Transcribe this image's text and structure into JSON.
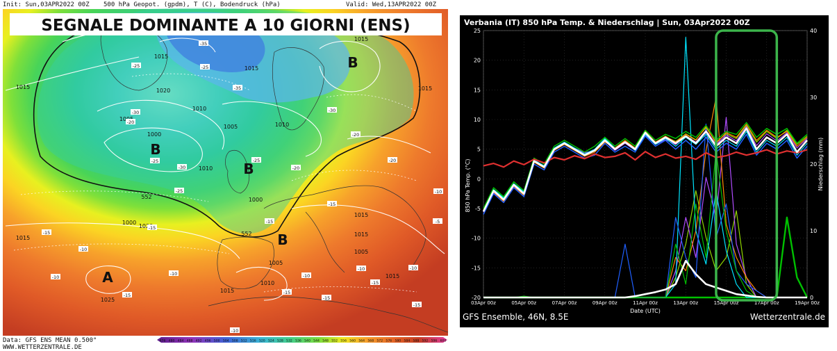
{
  "map": {
    "header_init": "Init: Sun,03APR2022 00Z",
    "header_field": "500 hPa Geopot. (gpdm), T (C), Bodendruck (hPa)",
    "header_valid": "Valid: Wed,13APR2022 00Z",
    "banner_title": "SEGNALE DOMINANTE A 10 GIORNI (ENS)",
    "footer_data": "Data: GFS ENS MEAN 0.500°",
    "footer_site": "WWW.WETTERZENTRALE.DE",
    "scale_labels": [
      "476",
      "480",
      "484",
      "488",
      "492",
      "496",
      "500",
      "504",
      "508",
      "512",
      "516",
      "520",
      "524",
      "528",
      "532",
      "536",
      "540",
      "544",
      "548",
      "552",
      "556",
      "560",
      "564",
      "568",
      "572",
      "576",
      "580",
      "584",
      "588",
      "592",
      "596",
      "600"
    ],
    "pressure_centres": [
      {
        "letter": "B",
        "label": "pressure-low-b"
      },
      {
        "letter": "B",
        "label": "pressure-low-b"
      },
      {
        "letter": "B",
        "label": "pressure-low-b"
      },
      {
        "letter": "B",
        "label": "pressure-low-b"
      },
      {
        "letter": "A",
        "label": "pressure-high-a"
      }
    ],
    "isobar_labels": [
      "1015",
      "1015",
      "1020",
      "1015",
      "1005",
      "1010",
      "1010",
      "1015",
      "1015",
      "1005",
      "1010",
      "1000",
      "1000",
      "1000",
      "1015",
      "1020",
      "1025",
      "1005",
      "1015",
      "1010",
      "1015",
      "1015",
      "1005",
      "1015",
      "552",
      "552"
    ],
    "temp_labels": [
      "-35",
      "-30",
      "-30",
      "-35",
      "-25",
      "-30",
      "-25",
      "-25",
      "-20",
      "-20",
      "-25",
      "-20",
      "-20",
      "-25",
      "-15",
      "-15",
      "-15",
      "-10",
      "-10",
      "-15",
      "-10",
      "-15",
      "-15",
      "-15",
      "-10",
      "-15",
      "-10",
      "-10",
      "-10",
      "-10",
      "-15",
      "-5"
    ]
  },
  "chart_data": {
    "type": "line",
    "title": "Verbania  (IT)  850 hPa Temp. & Niederschlag | Sun, 03Apr2022 00Z",
    "ylabel_left": "850 hPa Temp. (°C)",
    "ylabel_right": "Niederschlag (mm)",
    "xlabel": "Date (UTC)",
    "footer_left": "GFS Ensemble, 46N, 8.5E",
    "footer_right": "Wetterzentrale.de",
    "x_tick_labels": [
      "03Apr 00z",
      "05Apr 00z",
      "07Apr 00z",
      "09Apr 00z",
      "11Apr 00z",
      "13Apr 00z",
      "15Apr 00z",
      "17Apr 00z",
      "19Apr 00z"
    ],
    "ylim_left": [
      -20,
      25
    ],
    "ylim_right": [
      0,
      40
    ],
    "y_ticks_left": [
      "25",
      "20",
      "15",
      "10",
      "5",
      "0",
      "-5",
      "-10",
      "-15",
      "-20"
    ],
    "y_ticks_right": [
      "40",
      "30",
      "20",
      "10",
      "0"
    ],
    "x_days": [
      0,
      0.5,
      1,
      1.5,
      2,
      2.5,
      3,
      3.5,
      4,
      4.5,
      5,
      5.5,
      6,
      6.5,
      7,
      7.5,
      8,
      8.5,
      9,
      9.5,
      10,
      10.5,
      11,
      11.5,
      12,
      12.5,
      13,
      13.5,
      14,
      14.5,
      15,
      15.5,
      16
    ],
    "series": [
      {
        "values": [
          -5.5,
          -2,
          -3.5,
          -1,
          -2.5,
          3,
          2,
          5,
          6,
          5,
          4,
          4.8,
          6.5,
          5,
          6.2,
          5,
          7.8,
          6,
          7,
          6,
          7.2,
          6,
          8,
          5.5,
          7,
          6,
          8.5,
          5,
          7,
          6,
          7.5,
          4.5,
          6.5
        ],
        "color": "#ffffff",
        "width": 2.6
      },
      {
        "values": [
          2.2,
          2.6,
          2,
          3,
          2.4,
          3.3,
          2.7,
          3.6,
          3.2,
          3.9,
          3.4,
          4.2,
          3.6,
          3.8,
          4.4,
          3.2,
          4.6,
          3.6,
          4.2,
          3.5,
          3.8,
          3.3,
          4.4,
          3.6,
          3.9,
          4.5,
          4,
          4.4,
          4.9,
          4.2,
          4.7,
          4.4,
          4.9
        ],
        "color": "#e03030",
        "width": 2.2
      },
      {
        "values": [
          -5,
          -1.5,
          -3,
          -0.5,
          -2,
          3.5,
          2.5,
          5.5,
          6.5,
          5.5,
          4.5,
          5.5,
          7,
          5.5,
          6.8,
          5.5,
          8.2,
          6.5,
          7.5,
          6.8,
          8,
          7,
          9,
          6.5,
          8,
          7.5,
          9.5,
          7,
          8.5,
          7.5,
          8.5,
          6,
          7.5
        ],
        "color": "#00c000",
        "width": 1.5
      },
      {
        "values": [
          -6,
          -2.5,
          -4,
          -1.5,
          -3,
          2.5,
          1.5,
          4.5,
          5.5,
          4.5,
          3.5,
          4,
          6,
          4.5,
          5.5,
          4.5,
          7.2,
          5.5,
          6.5,
          5,
          6.5,
          5,
          7,
          4.5,
          6,
          5,
          7.5,
          4,
          6,
          5,
          6.5,
          3.5,
          5.5
        ],
        "color": "#1f5fff",
        "width": 1.5
      },
      {
        "values": [
          -5.2,
          -2.2,
          -3.8,
          -1.2,
          -2.8,
          2.8,
          1.8,
          4.8,
          5.8,
          4.8,
          3.8,
          4.5,
          6.2,
          5.2,
          6.5,
          5.2,
          8,
          6.2,
          7.2,
          6.2,
          7.5,
          6.5,
          8.8,
          6,
          7.8,
          7,
          9.2,
          6.5,
          8.2,
          7,
          8,
          5.5,
          7
        ],
        "color": "#ff8a00",
        "width": 1.2
      },
      {
        "values": [
          -5.4,
          -1.8,
          -3.2,
          -0.8,
          -2.2,
          3.2,
          2.2,
          5.2,
          6.2,
          5.2,
          4.2,
          5,
          6.8,
          5.2,
          6.2,
          4.8,
          7.5,
          5.8,
          6.8,
          5.5,
          7,
          5.8,
          7.5,
          5,
          6.5,
          5.5,
          8,
          4.5,
          6.5,
          5.5,
          7,
          4,
          6
        ],
        "color": "#00e5ff",
        "width": 1.2
      },
      {
        "values": [
          -5.6,
          -2.4,
          -3.6,
          -1.4,
          -2.6,
          3,
          2.2,
          5,
          6,
          5.2,
          4.4,
          4.8,
          6.4,
          4.8,
          6,
          4.8,
          7.4,
          5.8,
          6.6,
          5.8,
          7.2,
          6.2,
          8.2,
          5.8,
          7.4,
          6.4,
          8.8,
          5.6,
          7.6,
          6.4,
          7.8,
          5.2,
          6.8
        ],
        "color": "#b04cff",
        "width": 1.2
      },
      {
        "values": [
          -5.3,
          -2.1,
          -3.4,
          -1.1,
          -2.4,
          3.1,
          2.1,
          5.1,
          6.1,
          5.1,
          4.1,
          4.9,
          6.6,
          5.1,
          6.3,
          5.1,
          7.9,
          6.1,
          7.1,
          6.3,
          7.6,
          6.6,
          8.6,
          6.2,
          7.6,
          6.8,
          9,
          6.2,
          8,
          6.8,
          8.2,
          5.8,
          7.2
        ],
        "color": "#8fd400",
        "width": 1.2
      }
    ],
    "precip_series": [
      {
        "values": [
          0,
          0,
          0,
          0,
          0,
          0,
          0,
          0,
          0,
          0,
          0,
          0,
          0,
          0,
          0,
          0.2,
          0.5,
          0.8,
          1.2,
          2,
          5.5,
          3.5,
          2,
          1.5,
          1,
          0.5,
          0.3,
          0.1,
          0,
          0,
          0,
          0,
          0
        ],
        "color": "#ffffff",
        "width": 2.6
      },
      {
        "values": [
          0,
          0,
          0,
          0,
          0.2,
          0,
          0,
          0,
          0,
          0,
          0,
          0,
          0,
          0,
          0,
          0,
          0,
          0,
          0,
          8,
          2,
          14,
          6,
          22,
          10,
          4,
          1,
          0,
          0,
          0,
          0,
          0,
          0
        ],
        "color": "#00c000",
        "width": 1.2
      },
      {
        "values": [
          0,
          0,
          0,
          0,
          0,
          0,
          0,
          0,
          0,
          0,
          0,
          0,
          0,
          0,
          8,
          0,
          0,
          0,
          0,
          12,
          6,
          3,
          26,
          9,
          14,
          4,
          2,
          1,
          0,
          0,
          0,
          0,
          0
        ],
        "color": "#1f5fff",
        "width": 1.2
      },
      {
        "values": [
          0,
          0,
          0,
          0,
          0,
          0,
          0,
          0,
          0,
          0,
          0,
          0,
          0,
          0,
          0,
          0,
          0,
          0,
          0,
          2,
          39,
          10,
          5,
          16,
          7,
          2,
          0,
          0,
          0,
          0,
          0,
          0,
          0
        ],
        "color": "#00e5ff",
        "width": 1.2
      },
      {
        "values": [
          0,
          0,
          0,
          0,
          0,
          0,
          0,
          0,
          0,
          0,
          0,
          0,
          0,
          0,
          0,
          0,
          0,
          0,
          0,
          6,
          4,
          10,
          22,
          30,
          11,
          6,
          3,
          1,
          0,
          0,
          0,
          0,
          0
        ],
        "color": "#ff8a00",
        "width": 1.2
      },
      {
        "values": [
          0,
          0,
          0,
          0,
          0,
          0,
          0,
          0,
          0,
          0,
          0,
          0,
          0,
          0,
          0,
          0,
          0,
          0,
          0,
          4,
          12,
          6,
          18,
          12,
          27,
          8,
          3,
          0,
          0,
          0,
          0,
          0,
          0
        ],
        "color": "#b04cff",
        "width": 1.2
      },
      {
        "values": [
          0,
          0,
          0,
          0,
          0,
          0,
          0,
          0,
          0,
          0,
          0,
          0,
          0,
          0,
          0,
          0,
          0,
          0,
          0,
          3,
          8,
          16,
          9,
          4,
          6,
          13,
          2,
          0,
          0,
          0,
          0,
          0,
          0
        ],
        "color": "#8fd400",
        "width": 1.2
      },
      {
        "values": [
          0,
          0,
          0,
          0,
          0,
          0,
          0,
          0,
          0,
          0,
          0,
          0,
          0,
          0,
          0,
          0,
          0,
          0,
          0,
          0,
          0,
          0,
          0,
          0,
          0,
          0,
          0,
          0,
          0,
          0,
          12,
          3,
          0
        ],
        "color": "#00c000",
        "width": 2.4
      }
    ],
    "highlight": {
      "from_day": 11.5,
      "to_day": 14.5,
      "color": "#3cb44b"
    }
  }
}
